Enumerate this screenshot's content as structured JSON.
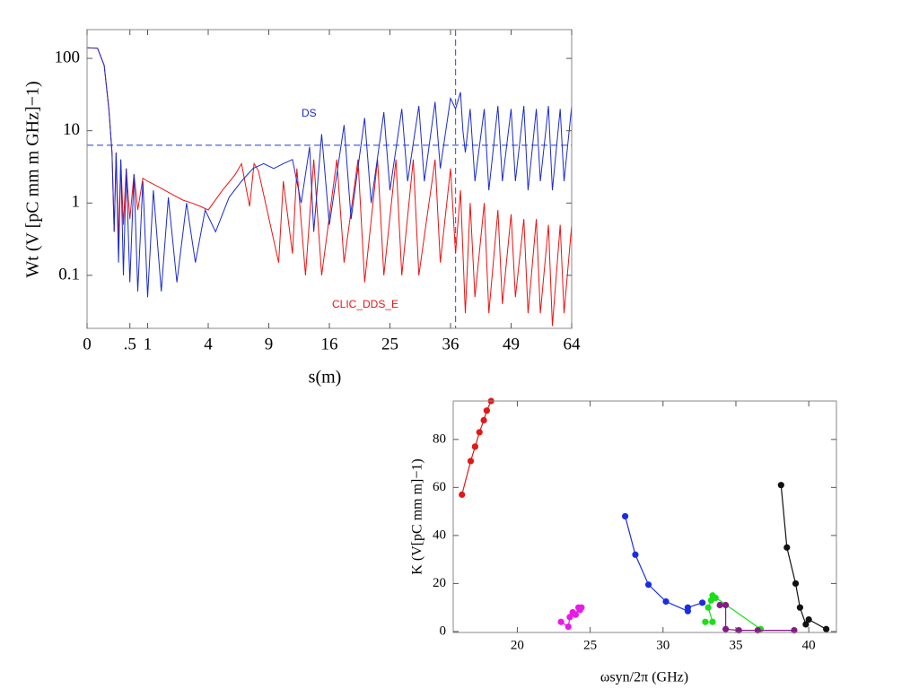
{
  "chart_data": [
    {
      "type": "line",
      "xlabel": "s(m)",
      "ylabel": "Wt (V [pC mm m GHz]−1)",
      "xscale": "sqrt",
      "yscale": "log",
      "xlim": [
        0,
        64
      ],
      "ylim": [
        0.0185,
        250
      ],
      "xticks": [
        0,
        {
          "value": 0.5,
          "label": ".5"
        },
        1,
        4,
        9,
        16,
        25,
        36,
        49,
        64
      ],
      "yticks": [
        0.1,
        1,
        10,
        100
      ],
      "hlines": [
        6.3
      ],
      "vlines": [
        37
      ],
      "refcolor": "#4a62e8",
      "series": [
        {
          "name": "CLIC_DDS_E",
          "color": "#ee1111",
          "x": [
            0,
            0.03,
            0.08,
            0.13,
            0.17,
            0.2,
            0.23,
            0.27,
            0.31,
            0.36,
            0.42,
            0.5,
            0.6,
            0.7,
            0.85,
            1,
            1.5,
            2,
            2.5,
            3,
            3.5,
            4,
            5,
            6,
            6.5,
            7.2,
            7.6,
            8,
            10,
            10.5,
            11.5,
            12,
            13,
            14,
            15,
            17,
            18,
            20,
            21,
            23,
            24,
            26,
            27,
            29,
            30,
            33,
            34,
            36,
            37,
            38,
            39,
            40,
            41,
            43,
            44,
            46,
            47,
            49,
            50,
            52,
            53,
            55,
            56,
            58,
            59,
            61,
            62,
            64
          ],
          "values": [
            140,
            138,
            80,
            20,
            5,
            0.4,
            5,
            0.3,
            4,
            0.5,
            3,
            0.6,
            2.5,
            0.8,
            2.2,
            2,
            1.6,
            1.3,
            1.1,
            1,
            0.9,
            0.8,
            1.5,
            2.5,
            3.5,
            0.9,
            3.5,
            2.8,
            0.15,
            2,
            0.2,
            3,
            0.1,
            4,
            0.1,
            4,
            0.15,
            4,
            0.08,
            4,
            0.1,
            4,
            0.1,
            4,
            0.1,
            4,
            0.15,
            3,
            0.2,
            1.5,
            0.03,
            1,
            0.05,
            1,
            0.03,
            0.8,
            0.04,
            0.7,
            0.05,
            0.6,
            0.03,
            0.6,
            0.03,
            0.5,
            0.02,
            0.5,
            0.03,
            0.5
          ]
        },
        {
          "name": "DS",
          "color": "#1a2acc",
          "x": [
            0,
            0.03,
            0.08,
            0.13,
            0.17,
            0.2,
            0.23,
            0.27,
            0.31,
            0.36,
            0.42,
            0.5,
            0.6,
            0.7,
            0.85,
            1,
            1.2,
            1.5,
            1.8,
            2.2,
            2.7,
            3.2,
            3.8,
            4.5,
            5.5,
            6.5,
            7.5,
            8.5,
            9.5,
            10.5,
            11.5,
            12.5,
            13.5,
            14,
            15,
            16,
            18,
            19,
            21,
            22,
            24,
            25,
            27,
            28,
            30,
            31,
            33,
            34,
            36,
            37,
            38,
            38.5,
            39,
            40,
            41,
            43,
            44,
            46,
            47,
            49,
            50,
            52,
            53,
            55,
            56,
            58,
            59,
            61,
            62,
            64
          ],
          "values": [
            140,
            138,
            80,
            20,
            5,
            0.4,
            5,
            0.15,
            4,
            0.1,
            3,
            0.08,
            2.5,
            0.06,
            2,
            0.05,
            1.5,
            0.06,
            1.2,
            0.08,
            1,
            0.15,
            0.8,
            0.4,
            1.2,
            2,
            3,
            3.5,
            3,
            3.5,
            4,
            1,
            6,
            0.4,
            9,
            0.5,
            12,
            0.6,
            15,
            1,
            18,
            1.5,
            20,
            2,
            22,
            2,
            25,
            3,
            28,
            20,
            34,
            10,
            5,
            20,
            2,
            20,
            1.5,
            22,
            2,
            20,
            2,
            22,
            1.5,
            20,
            2,
            22,
            1.5,
            20,
            2,
            22
          ]
        }
      ],
      "annotations": [
        "DS",
        "CLIC_DDS_E"
      ]
    },
    {
      "type": "scatter",
      "connect": true,
      "xlabel": "ωsyn/2π (GHz)",
      "ylabel": "K (V[pC mm m]−1)",
      "xlim": [
        15.6,
        41.9
      ],
      "ylim": [
        -0.4,
        96
      ],
      "xticks": [
        20,
        25,
        30,
        35,
        40
      ],
      "yticks": [
        0,
        20,
        40,
        60,
        80
      ],
      "series": [
        {
          "color": "#e01818",
          "x": [
            16.2,
            16.8,
            17.1,
            17.4,
            17.7,
            17.9,
            18.2
          ],
          "values": [
            57,
            71,
            77,
            83,
            88,
            92,
            96
          ]
        },
        {
          "color": "#e81ae8",
          "x": [
            23,
            23.5,
            23.6,
            23.8,
            24,
            24.2,
            24.3,
            24.4
          ],
          "values": [
            4,
            2,
            6,
            8,
            7,
            10,
            9,
            10
          ]
        },
        {
          "color": "#1a2ee0",
          "x": [
            27.4,
            28.1,
            29,
            30.2,
            31.7,
            31.7,
            32.7
          ],
          "values": [
            48,
            32,
            19.5,
            12.5,
            8.5,
            10,
            12
          ]
        },
        {
          "color": "#18e018",
          "x": [
            32.9,
            33.4,
            33.1,
            33.3,
            33.6,
            33.4,
            36.7
          ],
          "values": [
            4,
            4,
            10,
            13,
            14,
            15,
            1
          ]
        },
        {
          "color": "#861a86",
          "x": [
            33.9,
            34.3,
            34.3,
            35.2,
            36.5,
            39
          ],
          "values": [
            11,
            11,
            1,
            0.5,
            0.5,
            0.5
          ]
        },
        {
          "color": "#111111",
          "x": [
            38.1,
            38.5,
            39.1,
            39.4,
            39.8,
            40,
            41.2
          ],
          "values": [
            61,
            35,
            20,
            10,
            3,
            5,
            1
          ]
        }
      ]
    }
  ]
}
